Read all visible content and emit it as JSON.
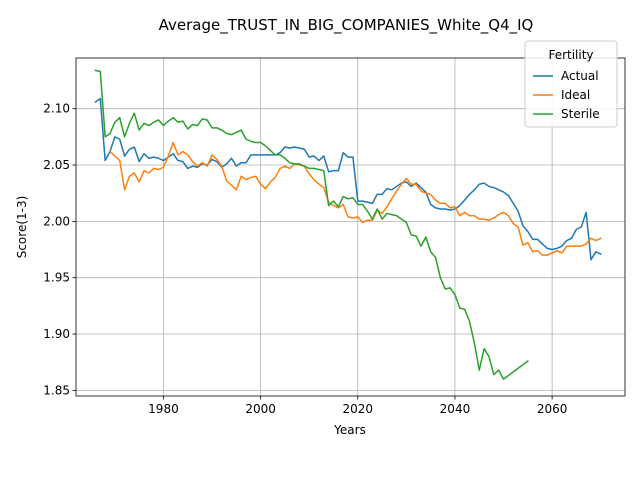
{
  "chart_data": {
    "type": "line",
    "title": "Average_TRUST_IN_BIG_COMPANIES_White_Q4_IQ",
    "xlabel": "Years",
    "ylabel": "Score(1-3)",
    "xlim": [
      1962,
      2075
    ],
    "ylim": [
      1.845,
      2.145
    ],
    "xticks": [
      1980,
      2000,
      2020,
      2040,
      2060
    ],
    "yticks": [
      1.85,
      1.9,
      1.95,
      2.0,
      2.05,
      2.1
    ],
    "xtick_labels": [
      "1980",
      "2000",
      "2020",
      "2040",
      "2060"
    ],
    "ytick_labels": [
      "1.85",
      "1.90",
      "1.95",
      "2.00",
      "2.05",
      "2.10"
    ],
    "grid": true,
    "legend": {
      "title": "Fertility",
      "position": "upper right"
    },
    "series": [
      {
        "name": "Actual",
        "color": "#1f77b4",
        "points": [
          [
            1966,
            2.106
          ],
          [
            1967,
            2.109
          ],
          [
            1968,
            2.054
          ],
          [
            1969,
            2.062
          ],
          [
            1970,
            2.075
          ],
          [
            1971,
            2.073
          ],
          [
            1972,
            2.058
          ],
          [
            1973,
            2.064
          ],
          [
            1974,
            2.066
          ],
          [
            1975,
            2.053
          ],
          [
            1976,
            2.06
          ],
          [
            1977,
            2.056
          ],
          [
            1978,
            2.057
          ],
          [
            1979,
            2.056
          ],
          [
            1980,
            2.054
          ],
          [
            1981,
            2.057
          ],
          [
            1982,
            2.06
          ],
          [
            1983,
            2.054
          ],
          [
            1984,
            2.053
          ],
          [
            1985,
            2.047
          ],
          [
            1986,
            2.049
          ],
          [
            1987,
            2.048
          ],
          [
            1988,
            2.051
          ],
          [
            1989,
            2.05
          ],
          [
            1990,
            2.055
          ],
          [
            1991,
            2.053
          ],
          [
            1992,
            2.048
          ],
          [
            1993,
            2.051
          ],
          [
            1994,
            2.056
          ],
          [
            1995,
            2.049
          ],
          [
            1996,
            2.052
          ],
          [
            1997,
            2.052
          ],
          [
            1998,
            2.059
          ],
          [
            1999,
            2.059
          ],
          [
            2000,
            2.059
          ],
          [
            2001,
            2.059
          ],
          [
            2002,
            2.059
          ],
          [
            2003,
            2.059
          ],
          [
            2004,
            2.061
          ],
          [
            2005,
            2.066
          ],
          [
            2006,
            2.065
          ],
          [
            2007,
            2.066
          ],
          [
            2008,
            2.065
          ],
          [
            2009,
            2.064
          ],
          [
            2010,
            2.057
          ],
          [
            2011,
            2.058
          ],
          [
            2012,
            2.054
          ],
          [
            2013,
            2.058
          ],
          [
            2014,
            2.044
          ],
          [
            2015,
            2.045
          ],
          [
            2016,
            2.045
          ],
          [
            2017,
            2.061
          ],
          [
            2018,
            2.057
          ],
          [
            2019,
            2.057
          ],
          [
            2020,
            2.018
          ],
          [
            2021,
            2.018
          ],
          [
            2022,
            2.017
          ],
          [
            2023,
            2.016
          ],
          [
            2024,
            2.024
          ],
          [
            2025,
            2.024
          ],
          [
            2026,
            2.029
          ],
          [
            2027,
            2.028
          ],
          [
            2028,
            2.031
          ],
          [
            2029,
            2.034
          ],
          [
            2030,
            2.035
          ],
          [
            2031,
            2.031
          ],
          [
            2032,
            2.034
          ],
          [
            2033,
            2.03
          ],
          [
            2034,
            2.026
          ],
          [
            2035,
            2.015
          ],
          [
            2036,
            2.012
          ],
          [
            2037,
            2.011
          ],
          [
            2038,
            2.011
          ],
          [
            2039,
            2.01
          ],
          [
            2040,
            2.011
          ],
          [
            2041,
            2.014
          ],
          [
            2042,
            2.019
          ],
          [
            2043,
            2.024
          ],
          [
            2044,
            2.028
          ],
          [
            2045,
            2.033
          ],
          [
            2046,
            2.034
          ],
          [
            2047,
            2.031
          ],
          [
            2048,
            2.03
          ],
          [
            2049,
            2.028
          ],
          [
            2050,
            2.026
          ],
          [
            2051,
            2.023
          ],
          [
            2052,
            2.016
          ],
          [
            2053,
            2.009
          ],
          [
            2054,
            1.996
          ],
          [
            2055,
            1.991
          ],
          [
            2056,
            1.984
          ],
          [
            2057,
            1.984
          ],
          [
            2058,
            1.98
          ],
          [
            2059,
            1.976
          ],
          [
            2060,
            1.975
          ],
          [
            2061,
            1.976
          ],
          [
            2062,
            1.978
          ],
          [
            2063,
            1.983
          ],
          [
            2064,
            1.985
          ],
          [
            2065,
            1.993
          ],
          [
            2066,
            1.995
          ],
          [
            2067,
            2.008
          ],
          [
            2068,
            1.966
          ],
          [
            2069,
            1.973
          ],
          [
            2070,
            1.971
          ]
        ]
      },
      {
        "name": "Ideal",
        "color": "#ff7f0e",
        "points": [
          [
            1969,
            2.062
          ],
          [
            1970,
            2.058
          ],
          [
            1971,
            2.054
          ],
          [
            1972,
            2.028
          ],
          [
            1973,
            2.04
          ],
          [
            1974,
            2.043
          ],
          [
            1975,
            2.035
          ],
          [
            1976,
            2.045
          ],
          [
            1977,
            2.043
          ],
          [
            1978,
            2.047
          ],
          [
            1979,
            2.046
          ],
          [
            1980,
            2.048
          ],
          [
            1981,
            2.058
          ],
          [
            1982,
            2.07
          ],
          [
            1983,
            2.059
          ],
          [
            1984,
            2.062
          ],
          [
            1985,
            2.059
          ],
          [
            1986,
            2.053
          ],
          [
            1987,
            2.049
          ],
          [
            1988,
            2.052
          ],
          [
            1989,
            2.049
          ],
          [
            1990,
            2.059
          ],
          [
            1991,
            2.055
          ],
          [
            1992,
            2.049
          ],
          [
            1993,
            2.036
          ],
          [
            1994,
            2.032
          ],
          [
            1995,
            2.028
          ],
          [
            1996,
            2.04
          ],
          [
            1997,
            2.037
          ],
          [
            1998,
            2.039
          ],
          [
            1999,
            2.04
          ],
          [
            2000,
            2.033
          ],
          [
            2001,
            2.029
          ],
          [
            2002,
            2.035
          ],
          [
            2003,
            2.039
          ],
          [
            2004,
            2.047
          ],
          [
            2005,
            2.049
          ],
          [
            2006,
            2.047
          ],
          [
            2007,
            2.051
          ],
          [
            2008,
            2.05
          ],
          [
            2009,
            2.049
          ],
          [
            2010,
            2.042
          ],
          [
            2011,
            2.037
          ],
          [
            2012,
            2.033
          ],
          [
            2013,
            2.03
          ],
          [
            2014,
            2.017
          ],
          [
            2015,
            2.014
          ],
          [
            2016,
            2.012
          ],
          [
            2017,
            2.015
          ],
          [
            2018,
            2.004
          ],
          [
            2019,
            2.003
          ],
          [
            2020,
            2.004
          ],
          [
            2021,
            1.999
          ],
          [
            2022,
            2.001
          ],
          [
            2023,
            2.001
          ],
          [
            2024,
            2.01
          ],
          [
            2025,
            2.007
          ],
          [
            2026,
            2.013
          ],
          [
            2027,
            2.02
          ],
          [
            2028,
            2.027
          ],
          [
            2029,
            2.033
          ],
          [
            2030,
            2.038
          ],
          [
            2031,
            2.033
          ],
          [
            2032,
            2.033
          ],
          [
            2033,
            2.027
          ],
          [
            2034,
            2.025
          ],
          [
            2035,
            2.024
          ],
          [
            2036,
            2.019
          ],
          [
            2037,
            2.016
          ],
          [
            2038,
            2.016
          ],
          [
            2039,
            2.012
          ],
          [
            2040,
            2.013
          ],
          [
            2041,
            2.005
          ],
          [
            2042,
            2.008
          ],
          [
            2043,
            2.005
          ],
          [
            2044,
            2.005
          ],
          [
            2045,
            2.002
          ],
          [
            2046,
            2.002
          ],
          [
            2047,
            2.001
          ],
          [
            2048,
            2.003
          ],
          [
            2049,
            2.006
          ],
          [
            2050,
            2.008
          ],
          [
            2051,
            2.005
          ],
          [
            2052,
            1.998
          ],
          [
            2053,
            1.995
          ],
          [
            2054,
            1.979
          ],
          [
            2055,
            1.981
          ],
          [
            2056,
            1.973
          ],
          [
            2057,
            1.974
          ],
          [
            2058,
            1.97
          ],
          [
            2059,
            1.97
          ],
          [
            2060,
            1.972
          ],
          [
            2061,
            1.974
          ],
          [
            2062,
            1.972
          ],
          [
            2063,
            1.978
          ],
          [
            2064,
            1.978
          ],
          [
            2065,
            1.978
          ],
          [
            2066,
            1.978
          ],
          [
            2067,
            1.98
          ],
          [
            2068,
            1.985
          ],
          [
            2069,
            1.983
          ],
          [
            2070,
            1.985
          ]
        ]
      },
      {
        "name": "Sterile",
        "color": "#2ca02c",
        "points": [
          [
            1966,
            2.134
          ],
          [
            1967,
            2.133
          ],
          [
            1968,
            2.075
          ],
          [
            1969,
            2.078
          ],
          [
            1970,
            2.088
          ],
          [
            1971,
            2.092
          ],
          [
            1972,
            2.075
          ],
          [
            1973,
            2.087
          ],
          [
            1974,
            2.096
          ],
          [
            1975,
            2.081
          ],
          [
            1976,
            2.087
          ],
          [
            1977,
            2.085
          ],
          [
            1978,
            2.088
          ],
          [
            1979,
            2.09
          ],
          [
            1980,
            2.085
          ],
          [
            1981,
            2.089
          ],
          [
            1982,
            2.092
          ],
          [
            1983,
            2.088
          ],
          [
            1984,
            2.089
          ],
          [
            1985,
            2.082
          ],
          [
            1986,
            2.086
          ],
          [
            1987,
            2.085
          ],
          [
            1988,
            2.091
          ],
          [
            1989,
            2.09
          ],
          [
            1990,
            2.083
          ],
          [
            1991,
            2.083
          ],
          [
            1992,
            2.081
          ],
          [
            1993,
            2.078
          ],
          [
            1994,
            2.077
          ],
          [
            1995,
            2.079
          ],
          [
            1996,
            2.081
          ],
          [
            1997,
            2.073
          ],
          [
            1998,
            2.071
          ],
          [
            1999,
            2.07
          ],
          [
            2000,
            2.07
          ],
          [
            2001,
            2.067
          ],
          [
            2002,
            2.063
          ],
          [
            2003,
            2.059
          ],
          [
            2004,
            2.059
          ],
          [
            2005,
            2.056
          ],
          [
            2006,
            2.052
          ],
          [
            2007,
            2.051
          ],
          [
            2008,
            2.051
          ],
          [
            2009,
            2.049
          ],
          [
            2010,
            2.047
          ],
          [
            2011,
            2.047
          ],
          [
            2012,
            2.046
          ],
          [
            2013,
            2.045
          ],
          [
            2014,
            2.014
          ],
          [
            2015,
            2.018
          ],
          [
            2016,
            2.013
          ],
          [
            2017,
            2.022
          ],
          [
            2018,
            2.02
          ],
          [
            2019,
            2.021
          ],
          [
            2020,
            2.015
          ],
          [
            2021,
            2.015
          ],
          [
            2022,
            2.009
          ],
          [
            2023,
            2.002
          ],
          [
            2024,
            2.011
          ],
          [
            2025,
            2.002
          ],
          [
            2026,
            2.007
          ],
          [
            2027,
            2.006
          ],
          [
            2028,
            2.005
          ],
          [
            2029,
            2.002
          ],
          [
            2030,
            1.999
          ],
          [
            2031,
            1.988
          ],
          [
            2032,
            1.987
          ],
          [
            2033,
            1.978
          ],
          [
            2034,
            1.986
          ],
          [
            2035,
            1.973
          ],
          [
            2036,
            1.968
          ],
          [
            2037,
            1.95
          ],
          [
            2038,
            1.94
          ],
          [
            2039,
            1.941
          ],
          [
            2040,
            1.935
          ],
          [
            2041,
            1.923
          ],
          [
            2042,
            1.922
          ],
          [
            2043,
            1.911
          ],
          [
            2044,
            1.892
          ],
          [
            2045,
            1.868
          ],
          [
            2046,
            1.887
          ],
          [
            2047,
            1.88
          ],
          [
            2048,
            1.864
          ],
          [
            2049,
            1.868
          ],
          [
            2050,
            1.86
          ],
          [
            2055,
            1.876
          ]
        ]
      }
    ]
  }
}
